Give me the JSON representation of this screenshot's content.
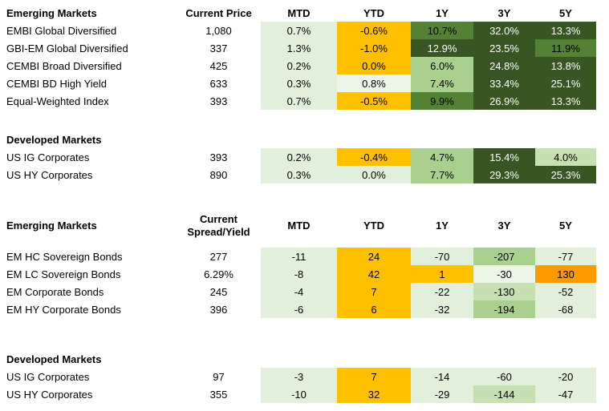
{
  "palette": {
    "orange": "#FFC000",
    "orange_strong": "#FF9900",
    "pale": "#E2EFDA",
    "paler": "#EDF5E8",
    "light": "#C6E0B4",
    "midlight": "#A9D08E",
    "mid": "#548235",
    "dark": "#375623",
    "dark_cell_text": "#FFFFFF",
    "default_text": "#000000"
  },
  "chart_data": [
    {
      "type": "table",
      "value_kind": "total_returns_percent",
      "current_header_lines": [
        "Current Price"
      ],
      "period_headers": [
        "MTD",
        "YTD",
        "1Y",
        "3Y",
        "5Y"
      ],
      "sections": [
        {
          "title": "Emerging Markets",
          "rows": [
            {
              "label": "EMBI Global Diversified",
              "current": "1,080",
              "values": [
                "0.7%",
                "-0.6%",
                "10.7%",
                "32.0%",
                "13.3%"
              ],
              "heat": [
                "pale",
                "orange",
                "mid",
                "dark",
                "dark"
              ]
            },
            {
              "label": "GBI-EM Global Diversified",
              "current": "337",
              "values": [
                "1.3%",
                "-1.0%",
                "12.9%",
                "23.5%",
                "11.9%"
              ],
              "heat": [
                "pale",
                "orange",
                "dark",
                "dark",
                "mid"
              ]
            },
            {
              "label": "CEMBI Broad Diversified",
              "current": "425",
              "values": [
                "0.2%",
                "0.0%",
                "6.0%",
                "24.8%",
                "13.8%"
              ],
              "heat": [
                "pale",
                "orange",
                "midlight",
                "dark",
                "dark"
              ]
            },
            {
              "label": "CEMBI BD High Yield",
              "current": "633",
              "values": [
                "0.3%",
                "0.8%",
                "7.4%",
                "33.4%",
                "25.1%"
              ],
              "heat": [
                "pale",
                "paler",
                "midlight",
                "dark",
                "dark"
              ]
            },
            {
              "label": "Equal-Weighted Index",
              "current": "393",
              "values": [
                "0.7%",
                "-0.5%",
                "9.9%",
                "26.9%",
                "13.3%"
              ],
              "heat": [
                "pale",
                "orange",
                "mid",
                "dark",
                "dark"
              ]
            }
          ]
        },
        {
          "title": "Developed Markets",
          "rows": [
            {
              "label": "US IG Corporates",
              "current": "393",
              "values": [
                "0.2%",
                "-0.4%",
                "4.7%",
                "15.4%",
                "4.0%"
              ],
              "heat": [
                "pale",
                "orange",
                "midlight",
                "dark",
                "light"
              ]
            },
            {
              "label": "US HY Corporates",
              "current": "890",
              "values": [
                "0.3%",
                "0.0%",
                "7.7%",
                "29.3%",
                "25.3%"
              ],
              "heat": [
                "pale",
                "pale",
                "midlight",
                "dark",
                "dark"
              ]
            }
          ]
        }
      ]
    },
    {
      "type": "table",
      "value_kind": "spread_yield_changes_bps",
      "current_header_lines": [
        "Current",
        "Spread/Yield"
      ],
      "period_headers": [
        "MTD",
        "YTD",
        "1Y",
        "3Y",
        "5Y"
      ],
      "sections": [
        {
          "title": "Emerging Markets",
          "rows": [
            {
              "label": "EM HC Sovereign Bonds",
              "current": "277",
              "values": [
                "-11",
                "24",
                "-70",
                "-207",
                "-77"
              ],
              "heat": [
                "pale",
                "orange",
                "pale",
                "midlight",
                "pale"
              ]
            },
            {
              "label": "EM LC Sovereign Bonds",
              "current": "6.29%",
              "values": [
                "-8",
                "42",
                "1",
                "-30",
                "130"
              ],
              "heat": [
                "pale",
                "orange",
                "orange",
                "paler",
                "orange_strong"
              ]
            },
            {
              "label": "EM Corporate Bonds",
              "current": "245",
              "values": [
                "-4",
                "7",
                "-22",
                "-130",
                "-52"
              ],
              "heat": [
                "pale",
                "orange",
                "pale",
                "light",
                "pale"
              ]
            },
            {
              "label": "EM HY Corporate Bonds",
              "current": "396",
              "values": [
                "-6",
                "6",
                "-32",
                "-194",
                "-68"
              ],
              "heat": [
                "pale",
                "orange",
                "pale",
                "midlight",
                "pale"
              ]
            }
          ]
        },
        {
          "title": "Developed Markets",
          "rows": [
            {
              "label": "US IG Corporates",
              "current": "97",
              "values": [
                "-3",
                "7",
                "-14",
                "-60",
                "-20"
              ],
              "heat": [
                "pale",
                "orange",
                "pale",
                "pale",
                "pale"
              ]
            },
            {
              "label": "US HY Corporates",
              "current": "355",
              "values": [
                "-10",
                "32",
                "-29",
                "-144",
                "-47"
              ],
              "heat": [
                "pale",
                "orange",
                "pale",
                "light",
                "pale"
              ]
            }
          ]
        }
      ]
    }
  ]
}
